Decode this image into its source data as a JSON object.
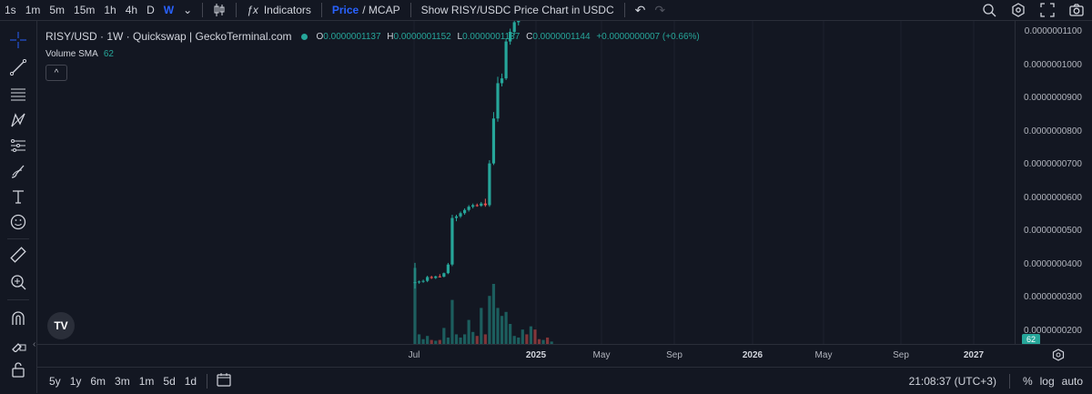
{
  "toolbar": {
    "intervals": [
      "1s",
      "1m",
      "5m",
      "15m",
      "1h",
      "4h",
      "D",
      "W"
    ],
    "active_interval": "W",
    "indicators_label": "Indicators",
    "price_label": "Price",
    "mcap_label": "/ MCAP",
    "show_chart_label": "Show RISY/USDC Price Chart in USDC"
  },
  "legend": {
    "title": "RISY/USD · 1W · Quickswap | GeckoTerminal.com",
    "o_key": "O",
    "o_val": "0.0000001137",
    "h_key": "H",
    "h_val": "0.0000001152",
    "l_key": "L",
    "l_val": "0.0000001137",
    "c_key": "C",
    "c_val": "0.0000001144",
    "change": "+0.0000000007 (+0.66%)",
    "volume_label": "Volume SMA",
    "volume_val": "62",
    "collapse_glyph": "^"
  },
  "price_axis": {
    "labels": [
      "0.0000001100",
      "0.0000001000",
      "0.0000000900",
      "0.0000000800",
      "0.0000000700",
      "0.0000000600",
      "0.0000000500",
      "0.0000000400",
      "0.0000000300",
      "0.0000000200"
    ],
    "volume_badge": "62"
  },
  "time_axis": {
    "labels": [
      {
        "text": "Jul",
        "bold": false
      },
      {
        "text": "2025",
        "bold": true
      },
      {
        "text": "May",
        "bold": false
      },
      {
        "text": "Sep",
        "bold": false
      },
      {
        "text": "2026",
        "bold": true
      },
      {
        "text": "May",
        "bold": false
      },
      {
        "text": "Sep",
        "bold": false
      },
      {
        "text": "2027",
        "bold": true
      }
    ]
  },
  "bottom": {
    "ranges": [
      "5y",
      "1y",
      "6m",
      "3m",
      "1m",
      "5d",
      "1d"
    ],
    "time": "21:08:37 (UTC+3)",
    "percent": "%",
    "log": "log",
    "auto": "auto"
  },
  "logo_text": "TV",
  "colors": {
    "up": "#26a69a",
    "down": "#ef5350",
    "background": "#131722",
    "accent": "#2962ff"
  },
  "chart_data": {
    "type": "candlestick",
    "title": "RISY/USD · 1W · Quickswap | GeckoTerminal.com",
    "ylim": [
      1.7e-08,
      1.1e-07
    ],
    "candles": [
      {
        "o": 3.17e-08,
        "h": 3.8e-08,
        "l": 3e-08,
        "c": 3.2e-08,
        "vol": 0.95
      },
      {
        "o": 3.2e-08,
        "h": 3.25e-08,
        "l": 3.15e-08,
        "c": 3.22e-08,
        "vol": 0.12
      },
      {
        "o": 3.22e-08,
        "h": 3.28e-08,
        "l": 3.18e-08,
        "c": 3.24e-08,
        "vol": 0.06
      },
      {
        "o": 3.24e-08,
        "h": 3.4e-08,
        "l": 3.2e-08,
        "c": 3.36e-08,
        "vol": 0.1
      },
      {
        "o": 3.36e-08,
        "h": 3.4e-08,
        "l": 3.3e-08,
        "c": 3.33e-08,
        "vol": 0.05
      },
      {
        "o": 3.33e-08,
        "h": 3.4e-08,
        "l": 3.3e-08,
        "c": 3.38e-08,
        "vol": 0.04
      },
      {
        "o": 3.38e-08,
        "h": 3.45e-08,
        "l": 3.35e-08,
        "c": 3.37e-08,
        "vol": 0.05
      },
      {
        "o": 3.37e-08,
        "h": 3.5e-08,
        "l": 3.35e-08,
        "c": 3.48e-08,
        "vol": 0.2
      },
      {
        "o": 3.48e-08,
        "h": 3.8e-08,
        "l": 3.45e-08,
        "c": 3.75e-08,
        "vol": 0.08
      },
      {
        "o": 3.75e-08,
        "h": 5.3e-08,
        "l": 3.7e-08,
        "c": 5.2e-08,
        "vol": 0.55
      },
      {
        "o": 5.2e-08,
        "h": 5.3e-08,
        "l": 5.1e-08,
        "c": 5.25e-08,
        "vol": 0.12
      },
      {
        "o": 5.25e-08,
        "h": 5.4e-08,
        "l": 5.2e-08,
        "c": 5.35e-08,
        "vol": 0.08
      },
      {
        "o": 5.35e-08,
        "h": 5.5e-08,
        "l": 5.3e-08,
        "c": 5.45e-08,
        "vol": 0.12
      },
      {
        "o": 5.45e-08,
        "h": 5.6e-08,
        "l": 5.4e-08,
        "c": 5.55e-08,
        "vol": 0.3
      },
      {
        "o": 5.55e-08,
        "h": 5.65e-08,
        "l": 5.5e-08,
        "c": 5.6e-08,
        "vol": 0.15
      },
      {
        "o": 5.6e-08,
        "h": 5.65e-08,
        "l": 5.55e-08,
        "c": 5.58e-08,
        "vol": 0.1
      },
      {
        "o": 5.58e-08,
        "h": 5.7e-08,
        "l": 5.55e-08,
        "c": 5.65e-08,
        "vol": 0.45
      },
      {
        "o": 5.65e-08,
        "h": 5.8e-08,
        "l": 5.55e-08,
        "c": 5.6e-08,
        "vol": 0.12
      },
      {
        "o": 5.6e-08,
        "h": 7e-08,
        "l": 5.55e-08,
        "c": 6.9e-08,
        "vol": 0.6
      },
      {
        "o": 6.9e-08,
        "h": 8.5e-08,
        "l": 6.85e-08,
        "c": 8.3e-08,
        "vol": 0.75
      },
      {
        "o": 8.3e-08,
        "h": 9.6e-08,
        "l": 8.2e-08,
        "c": 9.4e-08,
        "vol": 0.45
      },
      {
        "o": 9.4e-08,
        "h": 9.7e-08,
        "l": 9.3e-08,
        "c": 9.55e-08,
        "vol": 0.35
      },
      {
        "o": 9.55e-08,
        "h": 1.08e-07,
        "l": 9.5e-08,
        "c": 1.07e-07,
        "vol": 0.4
      },
      {
        "o": 1.07e-07,
        "h": 1.11e-07,
        "l": 1.06e-07,
        "c": 1.1e-07,
        "vol": 0.25
      },
      {
        "o": 1.1e-07,
        "h": 1.14e-07,
        "l": 1.09e-07,
        "c": 1.13e-07,
        "vol": 0.1
      },
      {
        "o": 1.13e-07,
        "h": 1.15e-07,
        "l": 1.12e-07,
        "c": 1.137e-07,
        "vol": 0.08
      },
      {
        "o": 1.137e-07,
        "h": 1.152e-07,
        "l": 1.137e-07,
        "c": 1.144e-07,
        "vol": 0.18
      }
    ],
    "volume_extra": [
      {
        "down": true,
        "vol": 0.12
      },
      {
        "down": false,
        "vol": 0.22
      },
      {
        "down": true,
        "vol": 0.18
      },
      {
        "down": true,
        "vol": 0.06
      },
      {
        "down": false,
        "vol": 0.05
      },
      {
        "down": true,
        "vol": 0.08
      },
      {
        "down": false,
        "vol": 0.03
      }
    ]
  }
}
